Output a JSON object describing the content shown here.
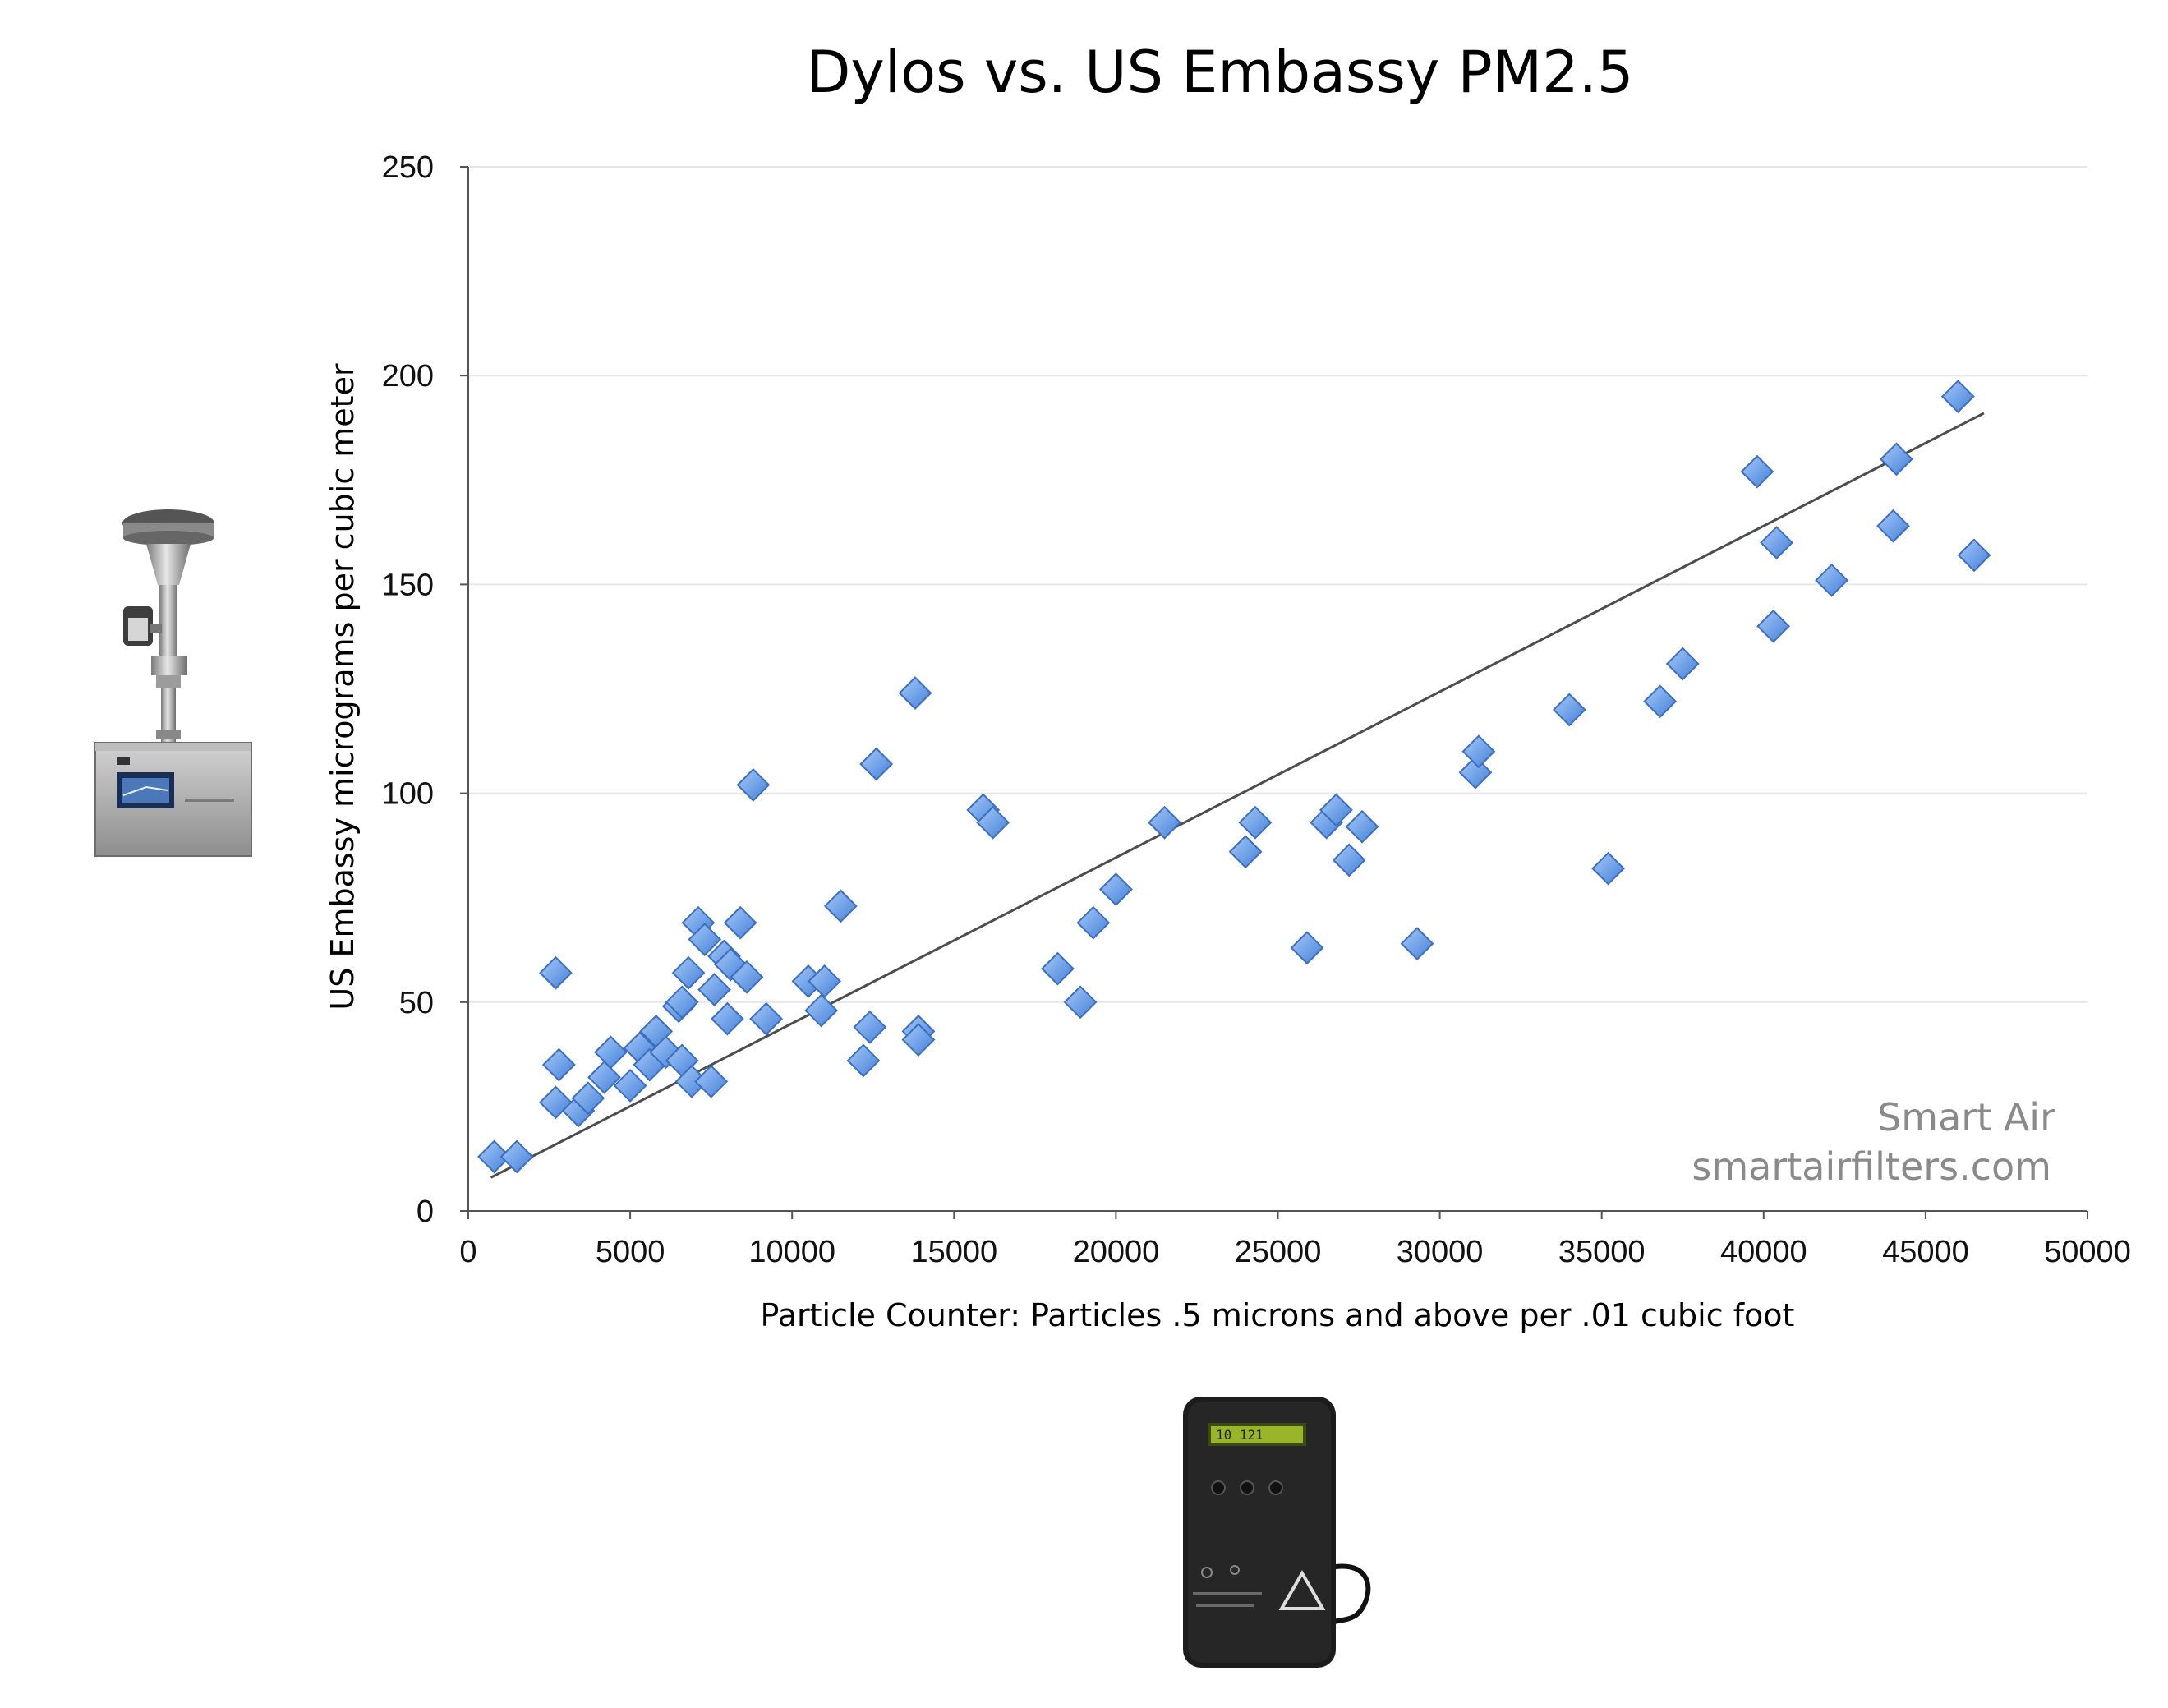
{
  "chart_data": {
    "type": "scatter",
    "title": "Dylos vs. US Embassy PM2.5",
    "xlabel": "Particle Counter: Particles .5 microns and above per .01 cubic foot",
    "ylabel": "US Embassy micrograms per cubic meter",
    "xlim": [
      0,
      50000
    ],
    "ylim": [
      0,
      250
    ],
    "xticks": [
      "0",
      "5000",
      "10000",
      "15000",
      "20000",
      "25000",
      "30000",
      "35000",
      "40000",
      "45000",
      "50000"
    ],
    "yticks": [
      "0",
      "50",
      "100",
      "150",
      "200",
      "250"
    ],
    "grid": "horizontal",
    "marker": "diamond",
    "marker_color": "#6fa1e8",
    "trendline": {
      "type": "linear",
      "x": [
        700,
        46800
      ],
      "y": [
        8,
        191
      ]
    },
    "points": [
      {
        "x": 800,
        "y": 13
      },
      {
        "x": 1500,
        "y": 13
      },
      {
        "x": 2700,
        "y": 57
      },
      {
        "x": 2700,
        "y": 26
      },
      {
        "x": 2800,
        "y": 35
      },
      {
        "x": 3400,
        "y": 24
      },
      {
        "x": 3700,
        "y": 27
      },
      {
        "x": 4200,
        "y": 32
      },
      {
        "x": 4400,
        "y": 38
      },
      {
        "x": 5000,
        "y": 30
      },
      {
        "x": 5300,
        "y": 39
      },
      {
        "x": 5600,
        "y": 35
      },
      {
        "x": 5800,
        "y": 43
      },
      {
        "x": 6100,
        "y": 38
      },
      {
        "x": 6500,
        "y": 49
      },
      {
        "x": 6600,
        "y": 36
      },
      {
        "x": 6600,
        "y": 50
      },
      {
        "x": 6800,
        "y": 57
      },
      {
        "x": 6900,
        "y": 31
      },
      {
        "x": 7100,
        "y": 69
      },
      {
        "x": 7300,
        "y": 65
      },
      {
        "x": 7500,
        "y": 31
      },
      {
        "x": 7600,
        "y": 53
      },
      {
        "x": 7900,
        "y": 61
      },
      {
        "x": 8000,
        "y": 46
      },
      {
        "x": 8100,
        "y": 59
      },
      {
        "x": 8400,
        "y": 69
      },
      {
        "x": 8600,
        "y": 56
      },
      {
        "x": 8800,
        "y": 102
      },
      {
        "x": 9200,
        "y": 46
      },
      {
        "x": 10500,
        "y": 55
      },
      {
        "x": 10900,
        "y": 48
      },
      {
        "x": 11000,
        "y": 55
      },
      {
        "x": 11500,
        "y": 73
      },
      {
        "x": 12200,
        "y": 36
      },
      {
        "x": 12400,
        "y": 44
      },
      {
        "x": 12600,
        "y": 107
      },
      {
        "x": 13800,
        "y": 124
      },
      {
        "x": 13900,
        "y": 43
      },
      {
        "x": 13900,
        "y": 41
      },
      {
        "x": 15900,
        "y": 96
      },
      {
        "x": 16200,
        "y": 93
      },
      {
        "x": 18200,
        "y": 58
      },
      {
        "x": 18900,
        "y": 50
      },
      {
        "x": 19300,
        "y": 69
      },
      {
        "x": 20000,
        "y": 77
      },
      {
        "x": 21500,
        "y": 93
      },
      {
        "x": 24000,
        "y": 86
      },
      {
        "x": 24300,
        "y": 93
      },
      {
        "x": 25900,
        "y": 63
      },
      {
        "x": 26500,
        "y": 93
      },
      {
        "x": 26800,
        "y": 96
      },
      {
        "x": 27200,
        "y": 84
      },
      {
        "x": 27600,
        "y": 92
      },
      {
        "x": 29300,
        "y": 64
      },
      {
        "x": 31100,
        "y": 105
      },
      {
        "x": 31200,
        "y": 110
      },
      {
        "x": 34000,
        "y": 120
      },
      {
        "x": 35200,
        "y": 82
      },
      {
        "x": 36800,
        "y": 122
      },
      {
        "x": 37500,
        "y": 131
      },
      {
        "x": 39800,
        "y": 177
      },
      {
        "x": 40300,
        "y": 140
      },
      {
        "x": 40400,
        "y": 160
      },
      {
        "x": 42100,
        "y": 151
      },
      {
        "x": 44000,
        "y": 164
      },
      {
        "x": 44100,
        "y": 180
      },
      {
        "x": 46000,
        "y": 195
      },
      {
        "x": 46500,
        "y": 157
      }
    ]
  },
  "watermark": {
    "line1": "Smart Air",
    "line2": "smartairfilters.com"
  },
  "devices": {
    "dylos_screen_text": "10 121"
  }
}
